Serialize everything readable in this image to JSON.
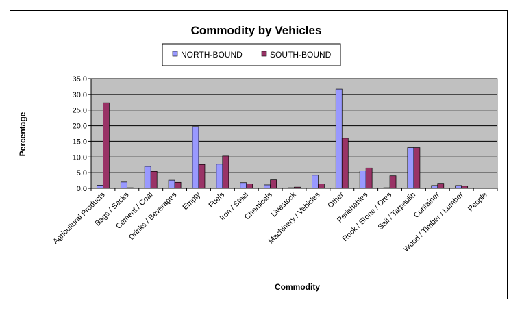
{
  "chart_data": {
    "type": "bar",
    "title": "Commodity by Vehicles",
    "xlabel": "Commodity",
    "ylabel": "Percentage",
    "ylim": [
      0,
      35
    ],
    "yticks": [
      "0.0",
      "5.0",
      "10.0",
      "15.0",
      "20.0",
      "25.0",
      "30.0",
      "35.0"
    ],
    "grid": true,
    "legend_position": "top-center",
    "plot_background": "#c0c0c0",
    "categories": [
      "Agricultural Products",
      "Bags / Sacks",
      "Cement / Coal",
      "Drinks / Beverages",
      "Empty",
      "Fuels",
      "Iron / Steel",
      "Chemicals",
      "Livestock",
      "Machinery / Vehicles",
      "Other",
      "Perishables",
      "Rock / Stone / Ores",
      "Sail / Tarpaulin",
      "Container",
      "Wood / Timber / Lumber",
      "People"
    ],
    "series": [
      {
        "name": "NORTH-BOUND",
        "color": "#9999ff",
        "values": [
          1.0,
          2.0,
          7.0,
          2.6,
          19.7,
          7.7,
          1.8,
          1.1,
          0.2,
          4.2,
          31.7,
          5.6,
          0.2,
          13.0,
          0.9,
          0.9,
          0.0
        ]
      },
      {
        "name": "SOUTH-BOUND",
        "color": "#993366",
        "values": [
          27.3,
          0.2,
          5.4,
          1.9,
          7.6,
          10.3,
          1.4,
          2.7,
          0.4,
          1.4,
          16.0,
          6.5,
          4.0,
          13.0,
          1.6,
          0.7,
          0.0
        ]
      }
    ]
  }
}
